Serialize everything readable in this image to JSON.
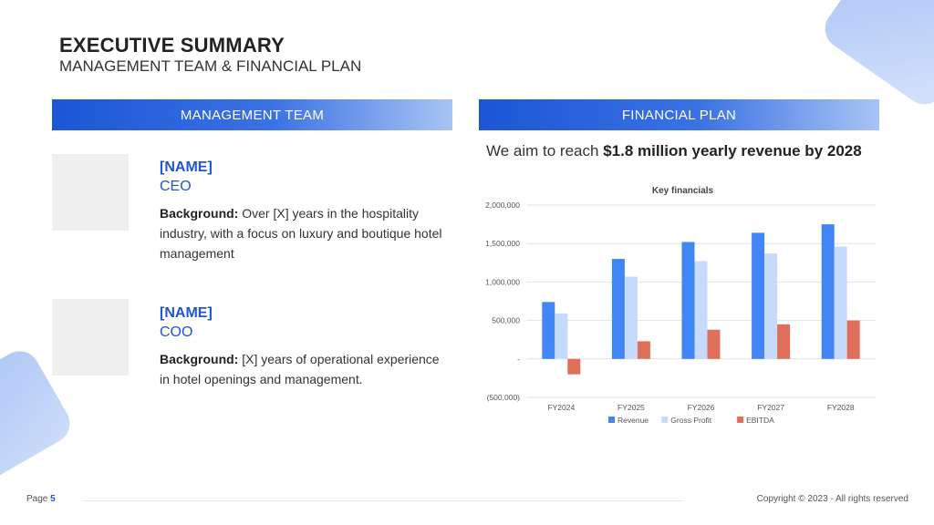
{
  "header": {
    "title": "EXECUTIVE SUMMARY",
    "subtitle": "MANAGEMENT TEAM & FINANCIAL PLAN"
  },
  "management": {
    "heading": "MANAGEMENT TEAM",
    "background_label": "Background:",
    "members": [
      {
        "name": "[NAME]",
        "role": "CEO",
        "background": " Over [X] years in the hospitality industry, with a focus on luxury and boutique hotel management"
      },
      {
        "name": "[NAME]",
        "role": "COO",
        "background": " [X] years of operational experience in hotel openings and management."
      }
    ]
  },
  "financial": {
    "heading": "FINANCIAL PLAN",
    "aim_prefix": "We aim to reach ",
    "aim_bold": "$1.8 million yearly revenue by 2028"
  },
  "chart_data": {
    "type": "bar",
    "title": "Key financials",
    "categories": [
      "FY2024",
      "FY2025",
      "FY2026",
      "FY2027",
      "FY2028"
    ],
    "series": [
      {
        "name": "Revenue",
        "color": "#4285f4",
        "values": [
          740000,
          1300000,
          1520000,
          1640000,
          1750000
        ]
      },
      {
        "name": "Gross Profit",
        "color": "#c6dafc",
        "values": [
          590000,
          1070000,
          1270000,
          1370000,
          1460000
        ]
      },
      {
        "name": "EBITDA",
        "color": "#e06f5c",
        "values": [
          -200000,
          230000,
          380000,
          450000,
          500000
        ]
      }
    ],
    "ylim": [
      -500000,
      2000000
    ],
    "yticks": [
      {
        "value": 2000000,
        "label": "2,000,000"
      },
      {
        "value": 1500000,
        "label": "1,500,000"
      },
      {
        "value": 1000000,
        "label": "1,000,000"
      },
      {
        "value": 500000,
        "label": "500,000"
      },
      {
        "value": 0,
        "label": "-"
      },
      {
        "value": -500000,
        "label": "(500,000)"
      }
    ],
    "grid": true,
    "legend": "bottom"
  },
  "footer": {
    "page_label": "Page",
    "page_number": "5",
    "copyright": "Copyright © 2023 - All rights reserved"
  }
}
